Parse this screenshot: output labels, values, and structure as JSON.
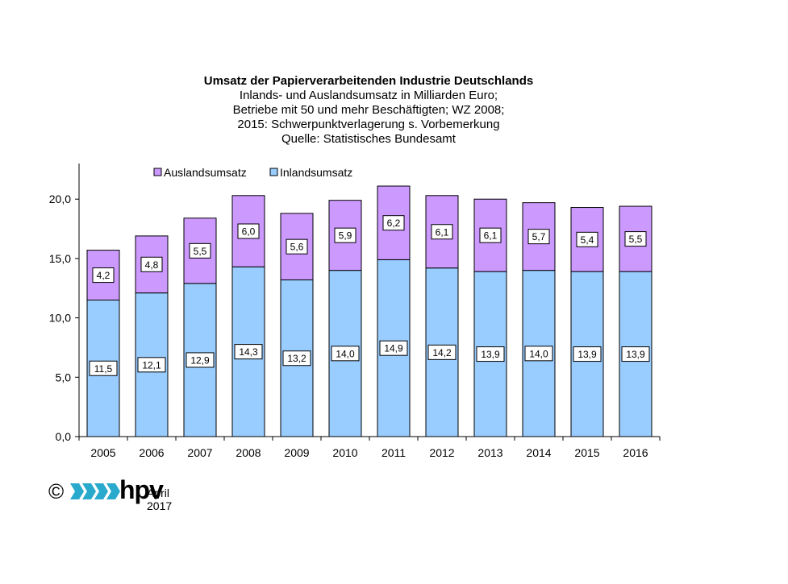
{
  "titles": {
    "main": "Umsatz der Papierverarbeitenden  Industrie Deutschlands",
    "line2": "Inlands- und Auslandsumsatz  in Milliarden Euro;",
    "line3": "Betriebe mit 50 und mehr Beschäftigten; WZ 2008;",
    "line4": "2015: Schwerpunktverlagerung  s. Vorbemerkung",
    "line5": "Quelle:  Statistisches  Bundesamt"
  },
  "footer": {
    "copyright": "©",
    "logo_text": "hpv",
    "date": "April 2017"
  },
  "colors": {
    "inland": "#99ccff",
    "ausland": "#cc99ff",
    "logo": "#29a9cc"
  },
  "chart_data": {
    "type": "bar",
    "stacked": true,
    "categories": [
      "2005",
      "2006",
      "2007",
      "2008",
      "2009",
      "2010",
      "2011",
      "2012",
      "2013",
      "2014",
      "2015",
      "2016"
    ],
    "series": [
      {
        "name": "Inlandsumsatz",
        "values": [
          11.5,
          12.1,
          12.9,
          14.3,
          13.2,
          14.0,
          14.9,
          14.2,
          13.9,
          14.0,
          13.9,
          13.9
        ],
        "labels": [
          "11,5",
          "12,1",
          "12,9",
          "14,3",
          "13,2",
          "14,0",
          "14,9",
          "14,2",
          "13,9",
          "14,0",
          "13,9",
          "13,9"
        ]
      },
      {
        "name": "Auslandsumsatz",
        "values": [
          4.2,
          4.8,
          5.5,
          6.0,
          5.6,
          5.9,
          6.2,
          6.1,
          6.1,
          5.7,
          5.4,
          5.5
        ],
        "labels": [
          "4,2",
          "4,8",
          "5,5",
          "6,0",
          "5,6",
          "5,9",
          "6,2",
          "6,1",
          "6,1",
          "5,7",
          "5,4",
          "5,5"
        ]
      }
    ],
    "ylim": [
      0,
      23
    ],
    "yticks": [
      0,
      5,
      10,
      15,
      20
    ],
    "ytick_labels": [
      "0,0",
      "5,0",
      "10,0",
      "15,0",
      "20,0"
    ],
    "legend": [
      "Auslandsumsatz",
      "Inlandsumsatz"
    ],
    "legend_position": "top-left",
    "grid": false
  }
}
